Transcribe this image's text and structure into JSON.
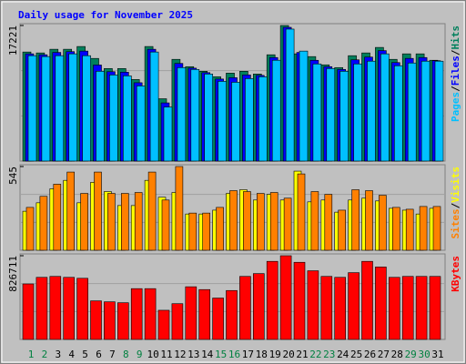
{
  "chart_data": [
    {
      "type": "bar",
      "title": "Daily usage for November 2025",
      "legend_separator": "/",
      "ylim": [
        0,
        17221
      ],
      "yticks": [
        17221
      ],
      "series": [
        {
          "name": "Pages",
          "color": "#00c0ff",
          "values": [
            13386,
            13270,
            13386,
            13619,
            13386,
            11407,
            10942,
            10825,
            9545,
            13852,
            6868,
            11873,
            11640,
            11058,
            10127,
            10010,
            10476,
            10709,
            12804,
            16762,
            13968,
            12338,
            11756,
            11407,
            12338,
            12688,
            13619,
            12106,
            12455,
            12688,
            12688
          ]
        },
        {
          "name": "Files",
          "color": "#0000ff",
          "values": [
            13620,
            13500,
            13800,
            13900,
            13970,
            12200,
            11350,
            11290,
            9950,
            14200,
            7390,
            12400,
            11800,
            11230,
            10420,
            10590,
            10940,
            10880,
            13150,
            16990,
            13800,
            12800,
            11990,
            11640,
            12860,
            13210,
            14030,
            12510,
            13040,
            13150,
            12750
          ]
        },
        {
          "name": "Hits",
          "color": "#00805c",
          "values": [
            13852,
            13735,
            14201,
            14201,
            14550,
            13037,
            11756,
            11756,
            10360,
            14550,
            7915,
            12920,
            11989,
            11407,
            10709,
            11174,
            11407,
            11058,
            13502,
            17221,
            13619,
            13270,
            12222,
            11873,
            13386,
            13735,
            14434,
            12920,
            13619,
            13619,
            12804
          ]
        }
      ]
    },
    {
      "type": "bar",
      "legend_separator": "/",
      "ylim": [
        0,
        545
      ],
      "yticks": [
        545
      ],
      "series": [
        {
          "name": "Sites",
          "color": "#ff8000",
          "values": [
            279,
            351,
            430,
            509,
            370,
            509,
            370,
            370,
            376,
            509,
            327,
            545,
            242,
            242,
            279,
            388,
            382,
            370,
            376,
            339,
            497,
            382,
            364,
            261,
            394,
            388,
            358,
            279,
            267,
            285,
            285
          ]
        },
        {
          "name": "Visits",
          "color": "#ffff00",
          "values": [
            254,
            309,
            400,
            455,
            309,
            442,
            382,
            291,
            291,
            455,
            345,
            376,
            236,
            236,
            261,
            370,
            394,
            327,
            364,
            327,
            515,
            315,
            327,
            248,
            327,
            339,
            321,
            273,
            261,
            236,
            273
          ]
        }
      ]
    },
    {
      "type": "bar",
      "ylim": [
        0,
        826711
      ],
      "yticks": [
        826711
      ],
      "categories": [
        "1",
        "2",
        "3",
        "4",
        "5",
        "6",
        "7",
        "8",
        "9",
        "10",
        "11",
        "12",
        "13",
        "14",
        "15",
        "16",
        "17",
        "18",
        "19",
        "20",
        "21",
        "22",
        "23",
        "24",
        "25",
        "26",
        "27",
        "28",
        "29",
        "30",
        "31"
      ],
      "category_colors": [
        "#008040",
        "#008040",
        "#000000",
        "#000000",
        "#000000",
        "#000000",
        "#000000",
        "#008040",
        "#008040",
        "#000000",
        "#000000",
        "#000000",
        "#000000",
        "#000000",
        "#008040",
        "#008040",
        "#000000",
        "#000000",
        "#000000",
        "#000000",
        "#000000",
        "#008040",
        "#008040",
        "#000000",
        "#000000",
        "#000000",
        "#000000",
        "#000000",
        "#008040",
        "#008040",
        "#000000"
      ],
      "series": [
        {
          "name": "KBytes",
          "color": "#ff0000",
          "values": [
            548051,
            613074,
            622363,
            613074,
            603785,
            380849,
            371560,
            362271,
            501606,
            501606,
            287959,
            352982,
            520184,
            492317,
            408716,
            483028,
            622363,
            650230,
            770987,
            826711,
            761698,
            678097,
            622363,
            613074,
            659519,
            770987,
            715253,
            613074,
            622363,
            622363,
            622363
          ]
        }
      ]
    }
  ]
}
